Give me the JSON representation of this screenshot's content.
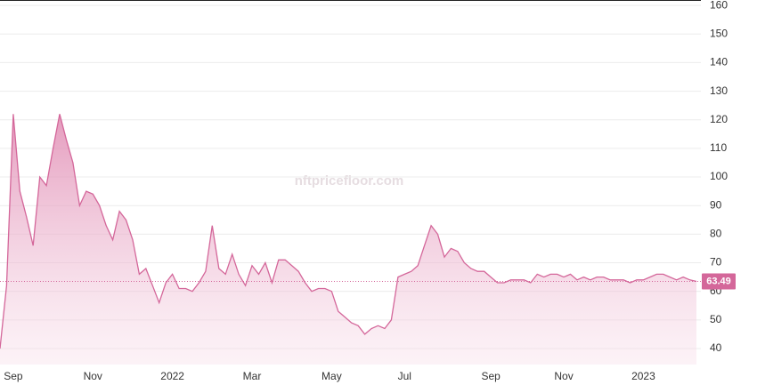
{
  "chart_data": {
    "type": "area",
    "watermark": "nftpricefloor.com",
    "categories": [
      null,
      null,
      "Sep",
      null,
      null,
      null,
      null,
      null,
      null,
      null,
      null,
      null,
      null,
      null,
      "Nov",
      null,
      null,
      null,
      null,
      null,
      null,
      null,
      null,
      null,
      null,
      null,
      "2022",
      null,
      null,
      null,
      null,
      null,
      null,
      null,
      null,
      null,
      null,
      null,
      "Mar",
      null,
      null,
      null,
      null,
      null,
      null,
      null,
      null,
      null,
      null,
      null,
      "May",
      null,
      null,
      null,
      null,
      null,
      null,
      null,
      null,
      null,
      null,
      "Jul",
      null,
      null,
      null,
      null,
      null,
      null,
      null,
      null,
      null,
      null,
      null,
      null,
      "Sep",
      null,
      null,
      null,
      null,
      null,
      null,
      null,
      null,
      null,
      null,
      "Nov",
      null,
      null,
      null,
      null,
      null,
      null,
      null,
      null,
      null,
      null,
      null,
      "2023",
      null,
      null,
      null,
      null,
      null,
      null,
      null,
      null
    ],
    "values": [
      40,
      62,
      122,
      95,
      86,
      76,
      100,
      97,
      110,
      122,
      113,
      105,
      90,
      95,
      94,
      90,
      83,
      78,
      88,
      85,
      78,
      66,
      68,
      62,
      56,
      63,
      66,
      61,
      61,
      60,
      63,
      67,
      83,
      68,
      66,
      73,
      66,
      62,
      69,
      66,
      70,
      63,
      71,
      71,
      69,
      67,
      63,
      60,
      61,
      61,
      60,
      53,
      51,
      49,
      48,
      45,
      47,
      48,
      47,
      50,
      65,
      66,
      67,
      69,
      76,
      83,
      80,
      72,
      75,
      74,
      70,
      68,
      67,
      67,
      65,
      63,
      63,
      64,
      64,
      64,
      63,
      66,
      65,
      66,
      66,
      65,
      66,
      64,
      65,
      64,
      65,
      65,
      64,
      64,
      64,
      63,
      64,
      64,
      65,
      66,
      66,
      65,
      64,
      65,
      64,
      63.49
    ],
    "color": "#d4679a",
    "ylim": [
      34.4,
      161.9
    ],
    "yticks": [
      40,
      50,
      60,
      70,
      80,
      90,
      100,
      110,
      120,
      130,
      140,
      150,
      160
    ],
    "grid": true
  }
}
